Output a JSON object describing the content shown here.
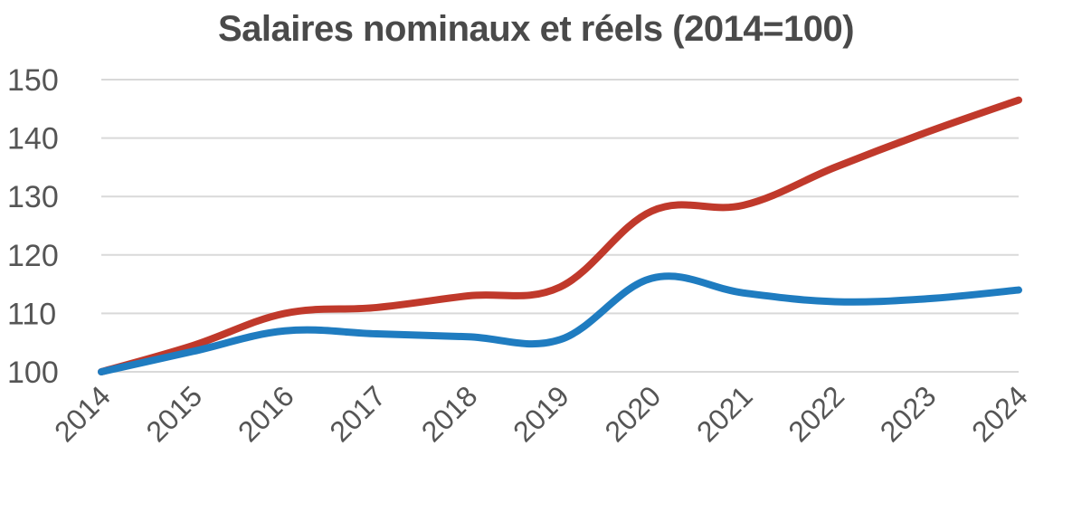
{
  "chart_data": {
    "type": "line",
    "title": "Salaires nominaux et réels (2014=100)",
    "xlabel": "",
    "ylabel": "",
    "categories": [
      "2014",
      "2015",
      "2016",
      "2017",
      "2018",
      "2019",
      "2020",
      "2021",
      "2022",
      "2023",
      "2024"
    ],
    "yticks": [
      "100",
      "110",
      "120",
      "130",
      "140",
      "150"
    ],
    "ylim": [
      100,
      150
    ],
    "grid": true,
    "legend": "none",
    "series": [
      {
        "color": "#c0392b",
        "values": [
          100,
          104.5,
          110,
          111,
          113,
          114.5,
          127.5,
          128.5,
          135,
          141,
          146.5
        ]
      },
      {
        "color": "#1f7cc0",
        "values": [
          100,
          103.5,
          107,
          106.5,
          106,
          105.5,
          116,
          113.5,
          112,
          112.5,
          114
        ]
      }
    ]
  }
}
